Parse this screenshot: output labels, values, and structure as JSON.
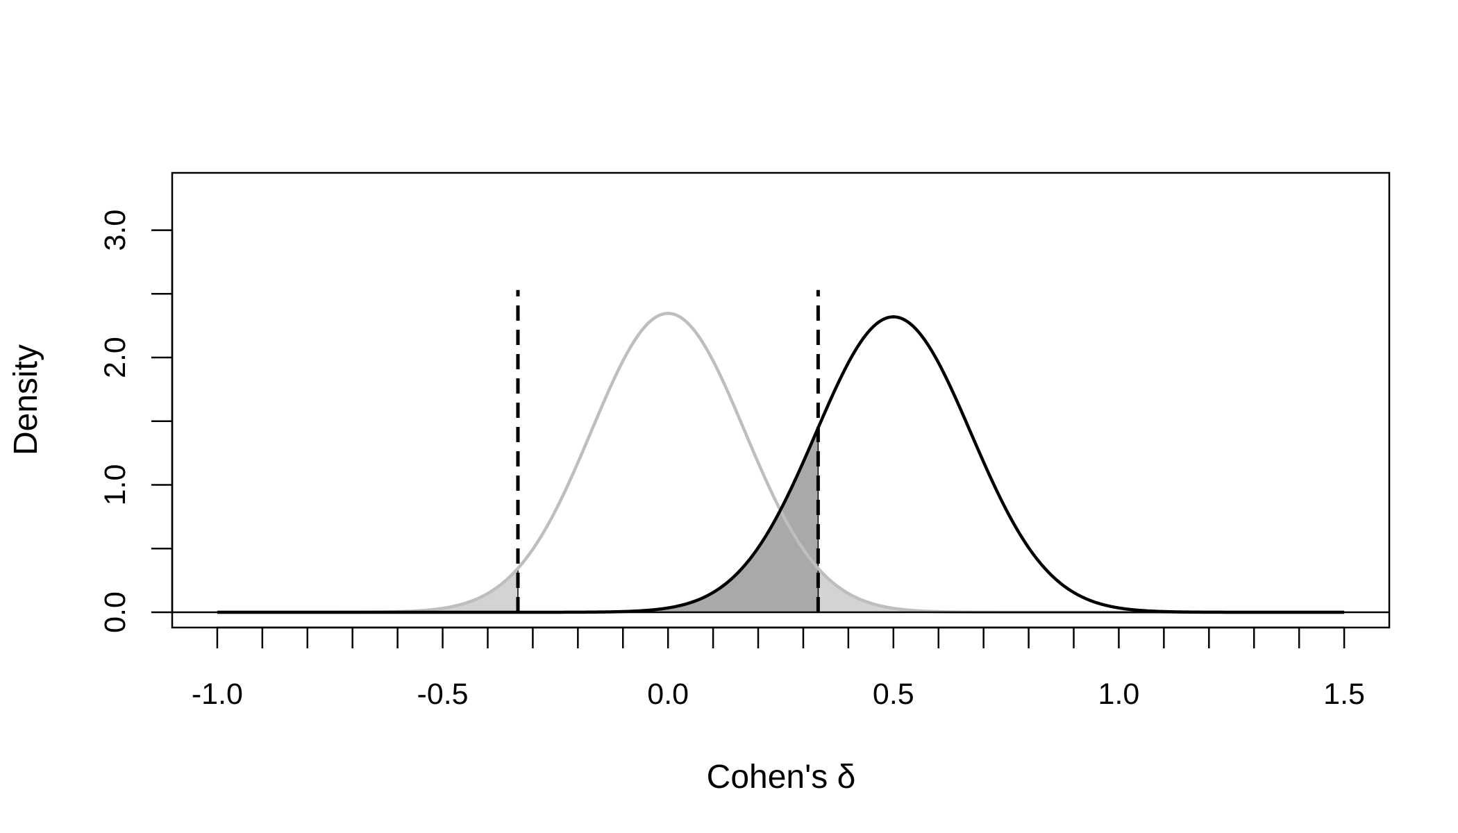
{
  "chart_data": {
    "type": "area",
    "title": "",
    "xlabel": "Cohen's δ",
    "ylabel": "Density",
    "xlim": [
      -1.1,
      1.6
    ],
    "ylim": [
      -0.12,
      3.45
    ],
    "x_ticks": [
      -1.0,
      -0.9,
      -0.8,
      -0.7,
      -0.6,
      -0.5,
      -0.4,
      -0.3,
      -0.2,
      -0.1,
      0.0,
      0.1,
      0.2,
      0.3,
      0.4,
      0.5,
      0.6,
      0.7,
      0.8,
      0.9,
      1.0,
      1.1,
      1.2,
      1.3,
      1.4,
      1.5
    ],
    "x_tick_labels": [
      {
        "value": -1.0,
        "label": "-1.0"
      },
      {
        "value": -0.5,
        "label": "-0.5"
      },
      {
        "value": 0.0,
        "label": "0.0"
      },
      {
        "value": 0.5,
        "label": "0.5"
      },
      {
        "value": 1.0,
        "label": "1.0"
      },
      {
        "value": 1.5,
        "label": "1.5"
      }
    ],
    "y_ticks": [
      0.0,
      0.5,
      1.0,
      1.5,
      2.0,
      2.5,
      3.0
    ],
    "y_tick_labels": [
      {
        "value": 0.0,
        "label": "0.0"
      },
      {
        "value": 1.0,
        "label": "1.0"
      },
      {
        "value": 2.0,
        "label": "2.0"
      },
      {
        "value": 3.0,
        "label": "3.0"
      }
    ],
    "grid": false,
    "legend": "none",
    "series": [
      {
        "mean": 0.0,
        "sd": 0.17,
        "x_range": [
          -1.0,
          1.5
        ],
        "color": "#bebebe",
        "role": "null-distribution"
      },
      {
        "mean": 0.5,
        "sd": 0.172,
        "x_range": [
          -1.0,
          1.5
        ],
        "color": "#000000",
        "role": "alternative-distribution"
      }
    ],
    "critical_values": [
      -0.333,
      0.333
    ],
    "critical_line_top": 2.53,
    "baseline_y": 0.0,
    "shaded_regions": [
      {
        "role": "alpha-left",
        "series": 0,
        "from": -1.0,
        "to": -0.333,
        "color": "#d3d3d3"
      },
      {
        "role": "alpha-right",
        "series": 0,
        "from": 0.333,
        "to": 1.5,
        "color": "#d3d3d3"
      },
      {
        "role": "beta",
        "series": 1,
        "from": -1.0,
        "to": 0.333,
        "color": "#a9a9a9"
      }
    ]
  }
}
